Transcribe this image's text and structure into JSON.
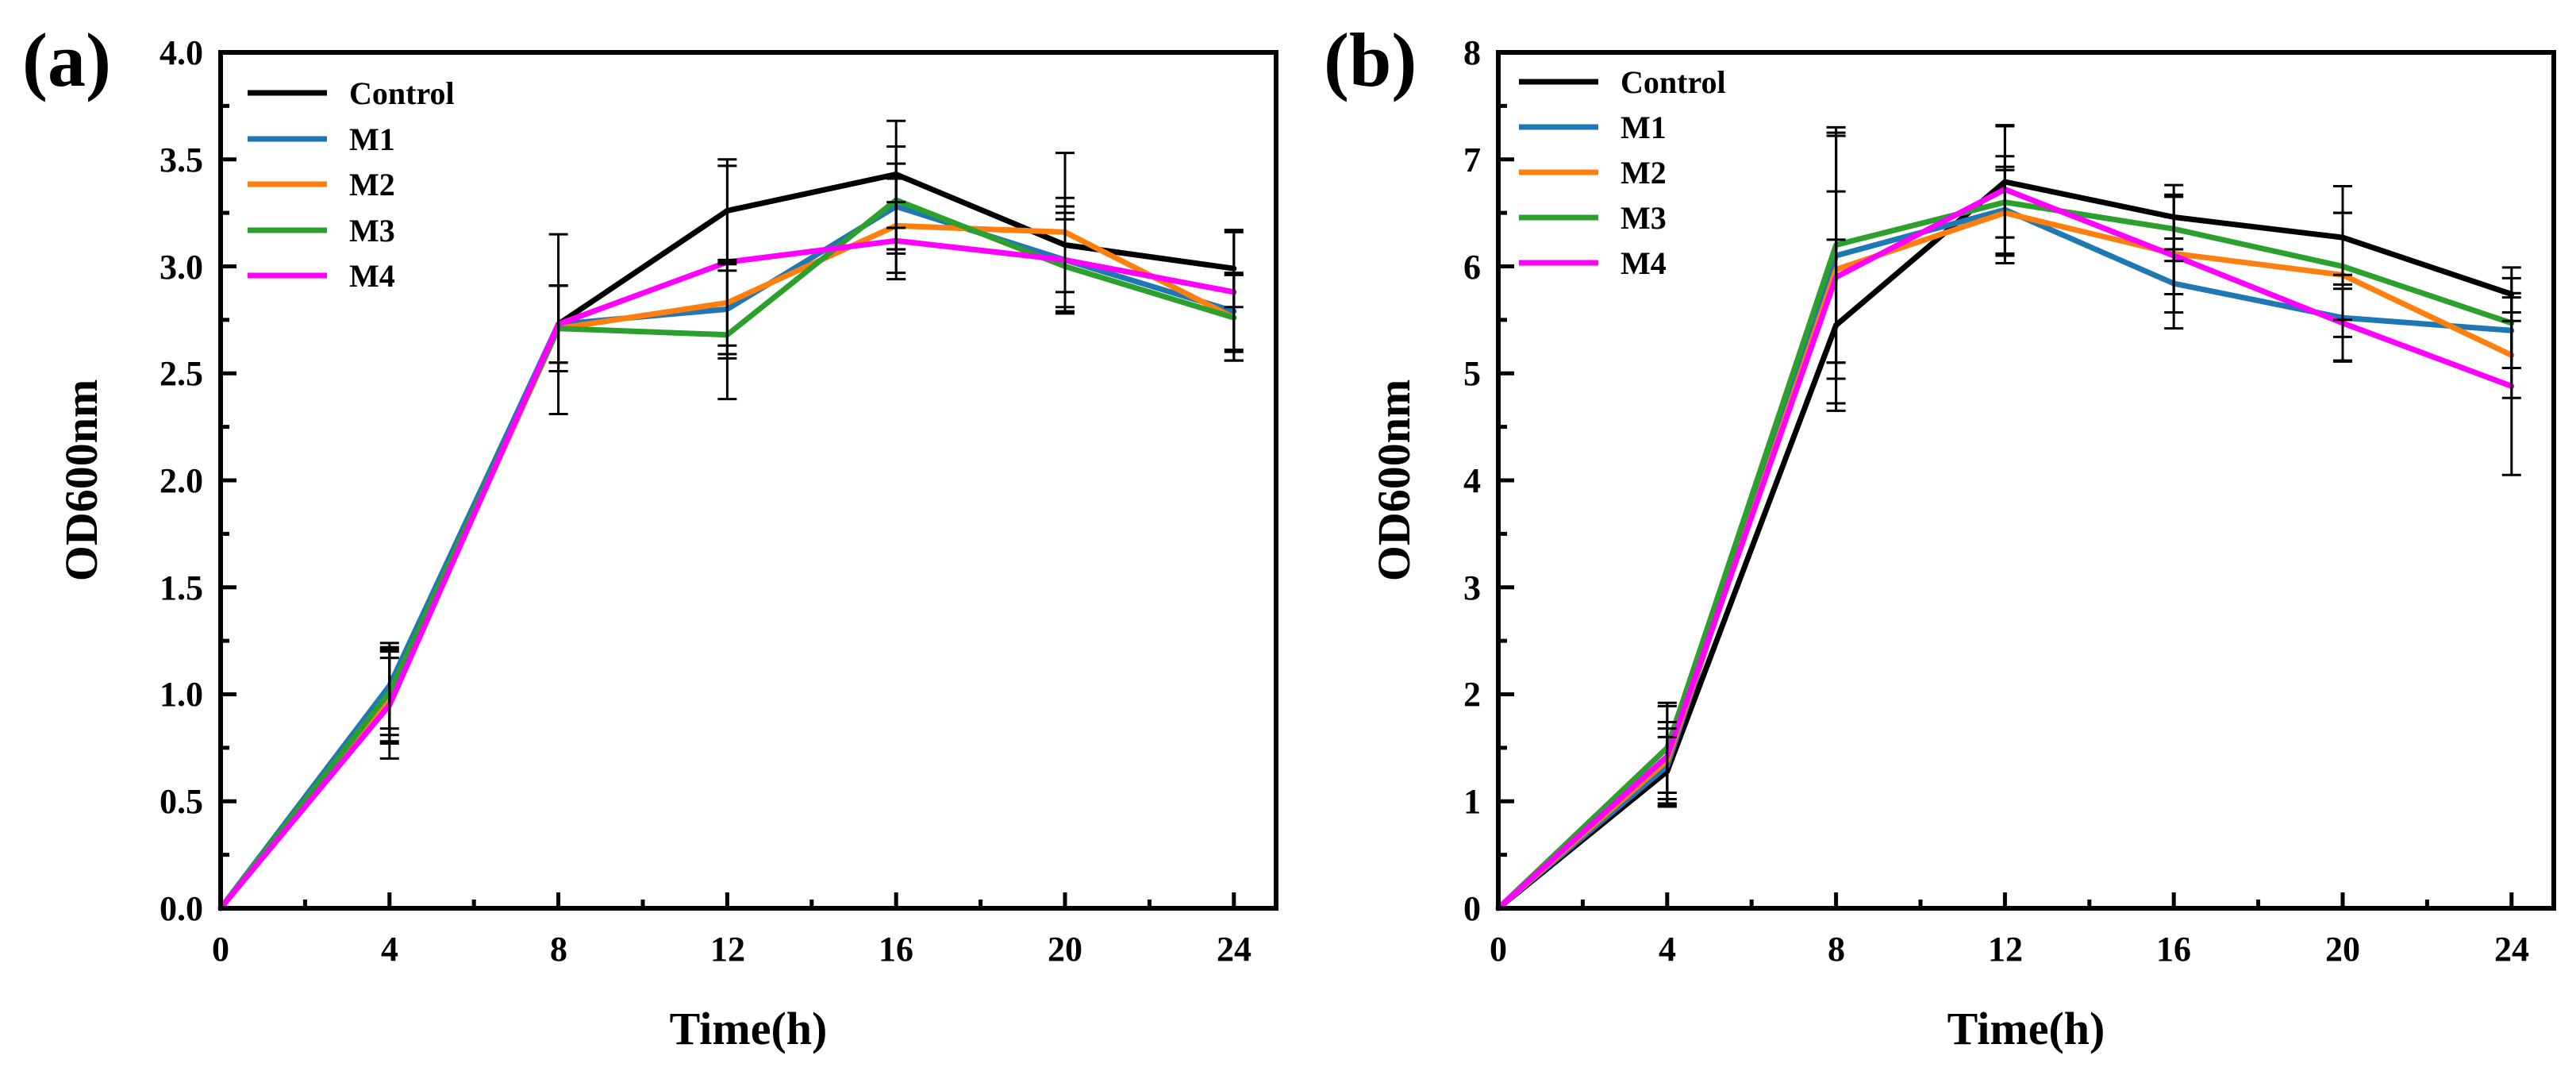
{
  "chart_data": [
    {
      "type": "line",
      "panel_label": "(a)",
      "xlabel": "Time(h)",
      "ylabel": "OD600nm",
      "xlim": [
        0,
        25
      ],
      "ylim": [
        0,
        4.0
      ],
      "xticks": [
        0,
        4,
        8,
        12,
        16,
        20,
        24
      ],
      "xtick_labels": [
        "0",
        "4",
        "8",
        "12",
        "16",
        "20",
        "24"
      ],
      "yticks": [
        0,
        0.5,
        1.0,
        1.5,
        2.0,
        2.5,
        3.0,
        3.5,
        4.0
      ],
      "ytick_labels": [
        "0.0",
        "0.5",
        "1.0",
        "1.5",
        "2.0",
        "2.5",
        "3.0",
        "3.5",
        "4.0"
      ],
      "grid": false,
      "legend_position": "top-left",
      "x": [
        0,
        4,
        8,
        12,
        16,
        20,
        24
      ],
      "series": [
        {
          "name": "Control",
          "color": "#000000",
          "values": [
            0,
            1.0,
            2.73,
            3.26,
            3.43,
            3.1,
            2.99
          ],
          "errors": [
            0,
            0.22,
            0.18,
            0.24,
            0.25,
            0.22,
            0.18
          ]
        },
        {
          "name": "M1",
          "color": "#1f77b4",
          "values": [
            0,
            1.04,
            2.73,
            2.8,
            3.28,
            3.03,
            2.79
          ],
          "errors": [
            0,
            0.2,
            0.18,
            0.21,
            0.2,
            0.22,
            0.18
          ]
        },
        {
          "name": "M2",
          "color": "#ff7f0e",
          "values": [
            0,
            0.97,
            2.71,
            2.83,
            3.19,
            3.16,
            2.76
          ],
          "errors": [
            0,
            0.2,
            0.2,
            0.2,
            0.22,
            0.37,
            0.2
          ]
        },
        {
          "name": "M3",
          "color": "#2ca02c",
          "values": [
            0,
            1.01,
            2.71,
            2.68,
            3.31,
            3.0,
            2.76
          ],
          "errors": [
            0,
            0.2,
            0.2,
            0.3,
            0.25,
            0.22,
            0.2
          ]
        },
        {
          "name": "M4",
          "color": "#ff00ff",
          "values": [
            0,
            0.95,
            2.73,
            3.02,
            3.12,
            3.03,
            2.88
          ],
          "errors": [
            0,
            0.25,
            0.42,
            0.45,
            0.18,
            0.25,
            0.28
          ]
        }
      ]
    },
    {
      "type": "line",
      "panel_label": "(b)",
      "xlabel": "Time(h)",
      "ylabel": "OD600nm",
      "xlim": [
        0,
        25
      ],
      "ylim": [
        0,
        8
      ],
      "xticks": [
        0,
        4,
        8,
        12,
        16,
        20,
        24
      ],
      "xtick_labels": [
        "0",
        "4",
        "8",
        "12",
        "16",
        "20",
        "24"
      ],
      "yticks": [
        0,
        1,
        2,
        3,
        4,
        5,
        6,
        7,
        8
      ],
      "ytick_labels": [
        "0",
        "1",
        "2",
        "3",
        "4",
        "5",
        "6",
        "7",
        "8"
      ],
      "grid": false,
      "legend_position": "top-left",
      "x": [
        0,
        4,
        8,
        12,
        16,
        20,
        24
      ],
      "series": [
        {
          "name": "Control",
          "color": "#000000",
          "values": [
            0,
            1.28,
            5.45,
            6.79,
            6.46,
            6.27,
            5.74
          ],
          "errors": [
            0,
            0.32,
            0.8,
            0.52,
            0.3,
            0.48,
            0.25
          ]
        },
        {
          "name": "M1",
          "color": "#1f77b4",
          "values": [
            0,
            1.33,
            6.1,
            6.53,
            5.84,
            5.52,
            5.4
          ],
          "errors": [
            0,
            0.35,
            1.15,
            0.5,
            0.42,
            0.4,
            0.35
          ]
        },
        {
          "name": "M2",
          "color": "#ff7f0e",
          "values": [
            0,
            1.38,
            5.97,
            6.5,
            6.12,
            5.92,
            5.17
          ],
          "errors": [
            0,
            0.36,
            1.25,
            0.4,
            0.55,
            0.58,
            0.4
          ]
        },
        {
          "name": "M3",
          "color": "#2ca02c",
          "values": [
            0,
            1.5,
            6.2,
            6.6,
            6.35,
            6.0,
            5.47
          ],
          "errors": [
            0,
            0.42,
            1.1,
            0.33,
            0.3,
            0.5,
            0.42
          ]
        },
        {
          "name": "M4",
          "color": "#ff00ff",
          "values": [
            0,
            1.42,
            5.9,
            6.72,
            6.1,
            5.47,
            4.88
          ],
          "errors": [
            0,
            0.47,
            0.8,
            0.6,
            0.36,
            0.36,
            0.83
          ]
        }
      ]
    }
  ]
}
